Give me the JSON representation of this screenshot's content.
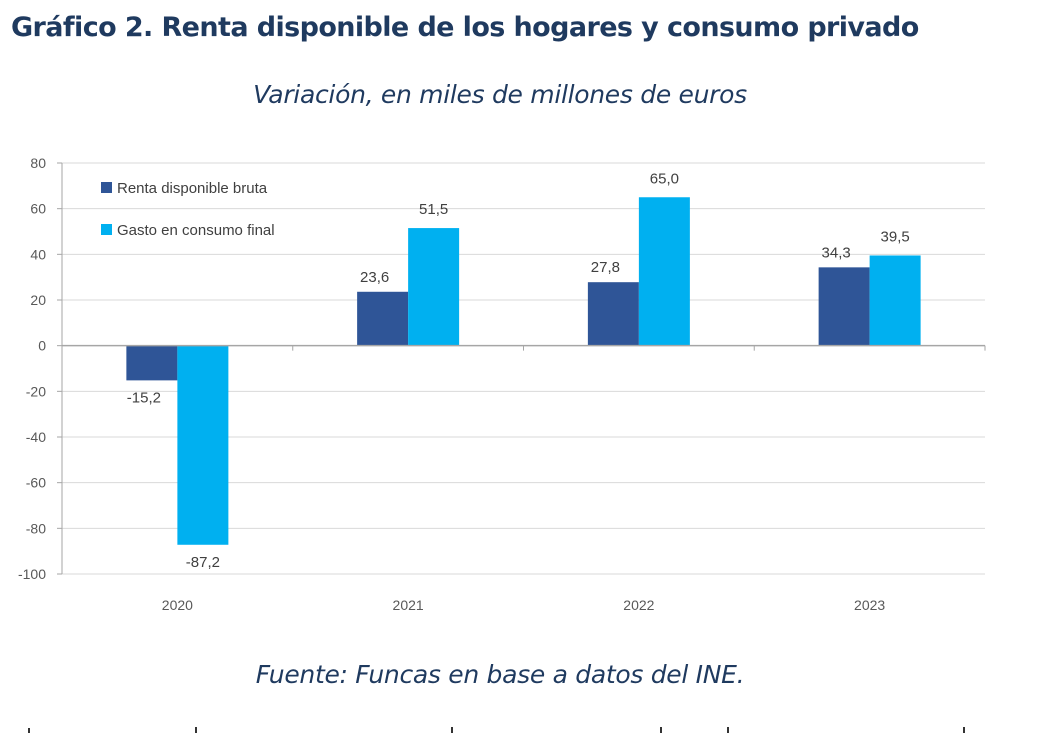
{
  "header": {
    "title": "Gráfico 2. Renta disponible de los hogares y consumo privado",
    "subtitle": "Variación, en miles de millones de euros"
  },
  "footer": {
    "source": "Fuente: Funcas en base a datos del INE."
  },
  "chart_data": {
    "type": "bar",
    "title": "Gráfico 2. Renta disponible de los hogares y consumo privado",
    "subtitle": "Variación, en miles de millones de euros",
    "xlabel": "",
    "ylabel": "",
    "categories": [
      "2020",
      "2021",
      "2022",
      "2023"
    ],
    "series": [
      {
        "name": "Renta disponible bruta",
        "color": "#2f5597",
        "values": [
          -15.2,
          23.6,
          27.8,
          34.3
        ],
        "labels": [
          "-15,2",
          "23,6",
          "27,8",
          "34,3"
        ]
      },
      {
        "name": "Gasto en consumo final",
        "color": "#00b0f0",
        "values": [
          -87.2,
          51.5,
          65.0,
          39.5
        ],
        "labels": [
          "-87,2",
          "51,5",
          "65,0",
          "39,5"
        ]
      }
    ],
    "ylim": [
      -100,
      80
    ],
    "yticks": [
      80,
      60,
      40,
      20,
      0,
      -20,
      -40,
      -60,
      -80,
      -100
    ],
    "ytick_labels": [
      "80",
      "60",
      "40",
      "20",
      "0",
      "-20",
      "-40",
      "-60",
      "-80",
      "-100"
    ],
    "grid": true,
    "legend": "top-left",
    "source": "Fuente: Funcas en base a datos del INE."
  }
}
